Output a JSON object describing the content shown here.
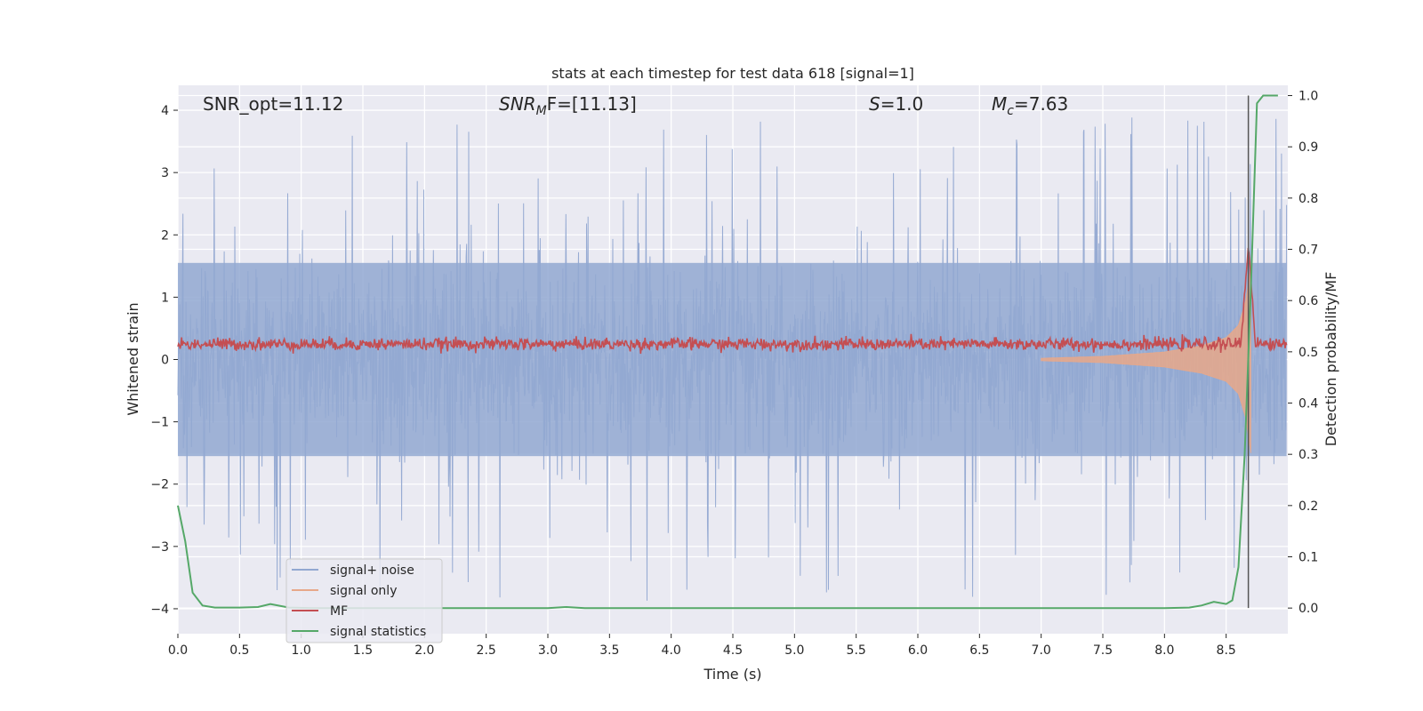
{
  "chart_data": {
    "type": "line",
    "title": "stats at each timestep for test data 618 [signal=1]",
    "xlabel": "Time (s)",
    "ylabel_left": "Whitened strain",
    "ylabel_right": "Detection probability/MF",
    "xlim": [
      0.0,
      9.0
    ],
    "ylim_left": [
      -4.4,
      4.4
    ],
    "ylim_right": [
      -0.05,
      1.02
    ],
    "x_ticks": [
      "0.0",
      "0.5",
      "1.0",
      "1.5",
      "2.0",
      "2.5",
      "3.0",
      "3.5",
      "4.0",
      "4.5",
      "5.0",
      "5.5",
      "6.0",
      "6.5",
      "7.0",
      "7.5",
      "8.0",
      "8.5"
    ],
    "y_ticks_left": [
      "−4",
      "−3",
      "−2",
      "−1",
      "0",
      "1",
      "2",
      "3",
      "4"
    ],
    "y_ticks_right": [
      "0.0",
      "0.1",
      "0.2",
      "0.3",
      "0.4",
      "0.5",
      "0.6",
      "0.7",
      "0.8",
      "0.9",
      "1.0"
    ],
    "grid": true,
    "legend_position": "lower-left",
    "annotations": {
      "snr_opt": "SNR_opt=11.12",
      "snr_mf_main": "SNR",
      "snr_mf_sub": "M",
      "snr_mf_rest": "F=[11.13]",
      "s_main": "S",
      "s_rest": "=1.0",
      "mc_main": "M",
      "mc_sub": "c",
      "mc_rest": "=7.63"
    },
    "vertical_line_x": 8.68,
    "series": [
      {
        "name": "signal+ noise",
        "color": "#92a8d1",
        "axis": "left",
        "description_values": "noise band roughly within ±1.6 with spikes up to ±4"
      },
      {
        "name": "signal only",
        "color": "#e7a88a",
        "axis": "left",
        "envelope": {
          "x": [
            7.0,
            7.5,
            8.0,
            8.3,
            8.5,
            8.6,
            8.66,
            8.7
          ],
          "amp": [
            0.02,
            0.05,
            0.12,
            0.22,
            0.35,
            0.55,
            0.95,
            1.5
          ]
        }
      },
      {
        "name": "MF",
        "color": "#c44e52",
        "axis": "right",
        "baseline": 0.515,
        "peak": {
          "x": 8.68,
          "y": 0.71
        }
      },
      {
        "name": "signal statistics",
        "color": "#55a868",
        "axis": "right",
        "x": [
          0.0,
          0.06,
          0.12,
          0.2,
          0.3,
          0.5,
          0.65,
          0.75,
          0.9,
          1.1,
          1.5,
          2.0,
          3.0,
          3.15,
          3.3,
          4.0,
          5.0,
          6.0,
          7.0,
          8.0,
          8.2,
          8.3,
          8.4,
          8.5,
          8.55,
          8.6,
          8.65,
          8.7,
          8.75,
          8.8,
          8.85,
          8.92
        ],
        "y": [
          0.2,
          0.13,
          0.03,
          0.005,
          0.001,
          0.001,
          0.002,
          0.008,
          0.001,
          0.0,
          0.0,
          0.0,
          0.0,
          0.002,
          0.0,
          0.0,
          0.0,
          0.0,
          0.0,
          0.0,
          0.001,
          0.005,
          0.012,
          0.008,
          0.015,
          0.08,
          0.3,
          0.62,
          0.985,
          1.0,
          1.0,
          1.0
        ]
      }
    ]
  }
}
